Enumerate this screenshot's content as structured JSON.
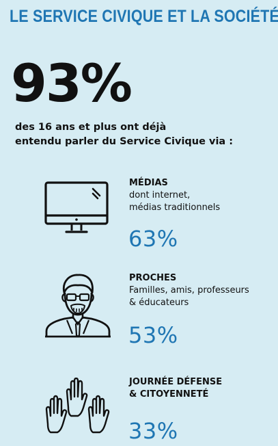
{
  "title": "LE SERVICE CIVIQUE ET LA SOCIÉTÉ",
  "headline": {
    "value": "93%",
    "line1": "des 16 ans et plus ont déjà",
    "line2": "entendu parler du Service Civique via :"
  },
  "items": [
    {
      "icon": "monitor-icon",
      "heading": "MÉDIAS",
      "desc_line1": "dont internet,",
      "desc_line2": "médias traditionnels",
      "percent": "63%"
    },
    {
      "icon": "people-icon",
      "heading": "PROCHES",
      "desc_line1": "Familles, amis, professeurs",
      "desc_line2": "& éducateurs",
      "percent": "53%"
    },
    {
      "icon": "raised-hands-icon",
      "heading_line1": "JOURNÉE DÉFENSE",
      "heading_line2": "& CITOYENNETÉ",
      "percent": "33%"
    }
  ],
  "colors": {
    "background": "#d6ecf3",
    "accent": "#1f76b3",
    "text": "#111111"
  }
}
